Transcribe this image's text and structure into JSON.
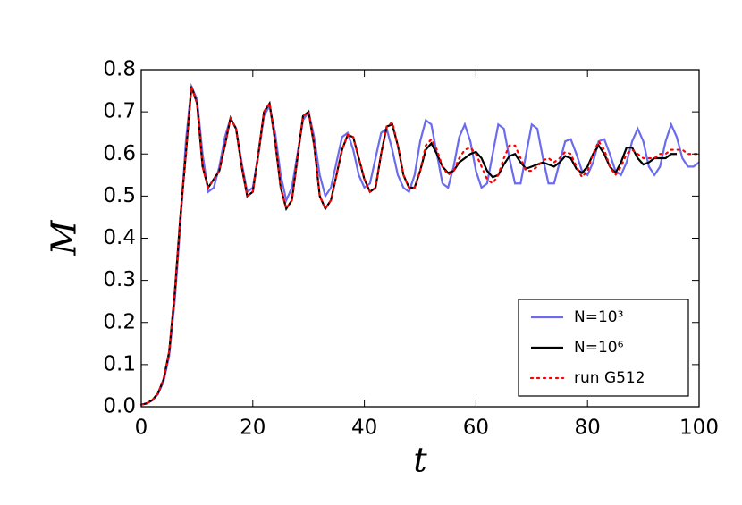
{
  "chart_data": {
    "type": "line",
    "xlabel": "t",
    "ylabel": "M",
    "xlim": [
      0,
      100
    ],
    "xticks": [
      0,
      20,
      40,
      60,
      80,
      100
    ],
    "ylim": [
      0,
      0.8
    ],
    "yticks": [
      {
        "value": 0,
        "label": "0.0"
      },
      0.1,
      0.2,
      0.3,
      0.4,
      0.5,
      0.6,
      0.7,
      0.8
    ],
    "legend": "lower right",
    "series": [
      {
        "name": "N=10³",
        "color": "#6b6bef",
        "style": "solid",
        "x": [
          0,
          1,
          2,
          3,
          4,
          5,
          6,
          7,
          8,
          9,
          10,
          11,
          12,
          13,
          14,
          15,
          16,
          17,
          18,
          19,
          20,
          21,
          22,
          23,
          24,
          25,
          26,
          27,
          28,
          29,
          30,
          31,
          32,
          33,
          34,
          35,
          36,
          37,
          38,
          39,
          40,
          41,
          42,
          43,
          44,
          45,
          46,
          47,
          48,
          49,
          50,
          51,
          52,
          53,
          54,
          55,
          56,
          57,
          58,
          59,
          60,
          61,
          62,
          63,
          64,
          65,
          66,
          67,
          68,
          69,
          70,
          71,
          72,
          73,
          74,
          75,
          76,
          77,
          78,
          79,
          80,
          81,
          82,
          83,
          84,
          85,
          86,
          87,
          88,
          89,
          90,
          91,
          92,
          93,
          94,
          95,
          96,
          97,
          98,
          99,
          100
        ],
        "values": [
          0.005,
          0.008,
          0.015,
          0.03,
          0.06,
          0.12,
          0.25,
          0.43,
          0.63,
          0.76,
          0.73,
          0.6,
          0.51,
          0.52,
          0.57,
          0.64,
          0.685,
          0.66,
          0.58,
          0.51,
          0.52,
          0.6,
          0.69,
          0.715,
          0.65,
          0.55,
          0.49,
          0.52,
          0.6,
          0.68,
          0.7,
          0.64,
          0.55,
          0.5,
          0.52,
          0.58,
          0.64,
          0.65,
          0.61,
          0.55,
          0.52,
          0.53,
          0.59,
          0.65,
          0.66,
          0.61,
          0.55,
          0.52,
          0.51,
          0.55,
          0.63,
          0.68,
          0.67,
          0.6,
          0.53,
          0.52,
          0.57,
          0.64,
          0.67,
          0.63,
          0.56,
          0.52,
          0.53,
          0.6,
          0.67,
          0.66,
          0.59,
          0.53,
          0.53,
          0.6,
          0.67,
          0.66,
          0.59,
          0.53,
          0.53,
          0.58,
          0.63,
          0.635,
          0.6,
          0.56,
          0.55,
          0.58,
          0.63,
          0.635,
          0.6,
          0.56,
          0.55,
          0.58,
          0.63,
          0.66,
          0.63,
          0.57,
          0.55,
          0.57,
          0.63,
          0.67,
          0.64,
          0.59,
          0.57,
          0.57,
          0.58
        ]
      },
      {
        "name": "N=10⁶",
        "color": "#000000",
        "style": "solid",
        "x": [
          0,
          1,
          2,
          3,
          4,
          5,
          6,
          7,
          8,
          9,
          10,
          11,
          12,
          13,
          14,
          15,
          16,
          17,
          18,
          19,
          20,
          21,
          22,
          23,
          24,
          25,
          26,
          27,
          28,
          29,
          30,
          31,
          32,
          33,
          34,
          35,
          36,
          37,
          38,
          39,
          40,
          41,
          42,
          43,
          44,
          45,
          46,
          47,
          48,
          49,
          50,
          51,
          52,
          53,
          54,
          55,
          56,
          57,
          58,
          59,
          60,
          61,
          62,
          63,
          64,
          65,
          66,
          67,
          68,
          69,
          70,
          71,
          72,
          73,
          74,
          75,
          76,
          77,
          78,
          79,
          80,
          81,
          82,
          83,
          84,
          85,
          86,
          87,
          88,
          89,
          90,
          91,
          92,
          93,
          94,
          95,
          96
        ],
        "values": [
          0.005,
          0.008,
          0.016,
          0.032,
          0.065,
          0.13,
          0.27,
          0.45,
          0.6,
          0.76,
          0.72,
          0.57,
          0.52,
          0.54,
          0.56,
          0.62,
          0.685,
          0.66,
          0.57,
          0.5,
          0.51,
          0.6,
          0.7,
          0.72,
          0.63,
          0.52,
          0.47,
          0.49,
          0.59,
          0.69,
          0.7,
          0.62,
          0.5,
          0.47,
          0.49,
          0.55,
          0.61,
          0.645,
          0.64,
          0.59,
          0.54,
          0.51,
          0.52,
          0.6,
          0.665,
          0.67,
          0.62,
          0.55,
          0.52,
          0.52,
          0.56,
          0.61,
          0.625,
          0.6,
          0.57,
          0.555,
          0.56,
          0.58,
          0.59,
          0.6,
          0.605,
          0.59,
          0.56,
          0.545,
          0.55,
          0.575,
          0.595,
          0.6,
          0.58,
          0.565,
          0.57,
          0.575,
          0.58,
          0.575,
          0.57,
          0.58,
          0.595,
          0.59,
          0.565,
          0.555,
          0.57,
          0.6,
          0.62,
          0.6,
          0.57,
          0.555,
          0.58,
          0.615,
          0.615,
          0.59,
          0.575,
          0.58,
          0.59,
          0.59,
          0.59,
          0.6,
          0.6
        ]
      },
      {
        "name": "run G512",
        "color": "#ff0000",
        "style": "dotted",
        "x": [
          0,
          1,
          2,
          3,
          4,
          5,
          6,
          7,
          8,
          9,
          10,
          11,
          12,
          13,
          14,
          15,
          16,
          17,
          18,
          19,
          20,
          21,
          22,
          23,
          24,
          25,
          26,
          27,
          28,
          29,
          30,
          31,
          32,
          33,
          34,
          35,
          36,
          37,
          38,
          39,
          40,
          41,
          42,
          43,
          44,
          45,
          46,
          47,
          48,
          49,
          50,
          51,
          52,
          53,
          54,
          55,
          56,
          57,
          58,
          59,
          60,
          61,
          62,
          63,
          64,
          65,
          66,
          67,
          68,
          69,
          70,
          71,
          72,
          73,
          74,
          75,
          76,
          77,
          78,
          79,
          80,
          81,
          82,
          83,
          84,
          85,
          86,
          87,
          88,
          89,
          90,
          91,
          92,
          93,
          94,
          95,
          96,
          97,
          98,
          99,
          100
        ],
        "values": [
          0.005,
          0.008,
          0.016,
          0.032,
          0.065,
          0.13,
          0.27,
          0.45,
          0.6,
          0.76,
          0.72,
          0.57,
          0.52,
          0.54,
          0.56,
          0.62,
          0.685,
          0.66,
          0.57,
          0.5,
          0.51,
          0.6,
          0.7,
          0.72,
          0.63,
          0.52,
          0.47,
          0.49,
          0.59,
          0.69,
          0.7,
          0.62,
          0.5,
          0.47,
          0.49,
          0.55,
          0.61,
          0.645,
          0.64,
          0.59,
          0.54,
          0.51,
          0.52,
          0.6,
          0.665,
          0.675,
          0.62,
          0.55,
          0.52,
          0.52,
          0.56,
          0.62,
          0.635,
          0.61,
          0.57,
          0.55,
          0.56,
          0.59,
          0.61,
          0.615,
          0.6,
          0.57,
          0.54,
          0.53,
          0.55,
          0.59,
          0.62,
          0.62,
          0.59,
          0.56,
          0.56,
          0.57,
          0.585,
          0.59,
          0.58,
          0.59,
          0.605,
          0.6,
          0.57,
          0.545,
          0.56,
          0.6,
          0.63,
          0.61,
          0.57,
          0.55,
          0.57,
          0.6,
          0.61,
          0.6,
          0.59,
          0.59,
          0.59,
          0.6,
          0.6,
          0.61,
          0.61,
          0.61,
          0.6,
          0.6,
          0.6
        ]
      }
    ]
  }
}
